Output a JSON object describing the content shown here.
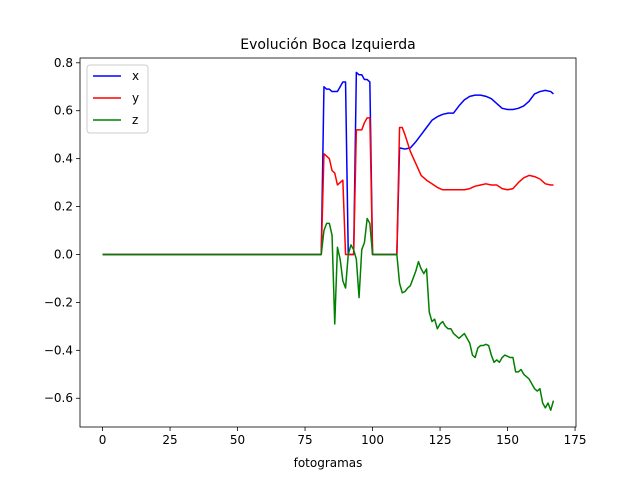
{
  "chart_data": {
    "type": "line",
    "title": "Evolución Boca Izquierda",
    "xlabel": "fotogramas",
    "ylabel": "",
    "xlim": [
      -8.35,
      175.35
    ],
    "ylim": [
      -0.72,
      0.82
    ],
    "xticks": [
      0,
      25,
      50,
      75,
      100,
      125,
      150,
      175
    ],
    "yticks": [
      -0.6,
      -0.4,
      -0.2,
      0.0,
      0.2,
      0.4,
      0.6,
      0.8
    ],
    "ytick_labels": [
      "−0.6",
      "−0.4",
      "−0.2",
      "0.0",
      "0.2",
      "0.4",
      "0.6",
      "0.8"
    ],
    "grid": false,
    "legend_position": "upper-left",
    "series": [
      {
        "name": "x",
        "color": "#0000ff",
        "points": [
          [
            0,
            0
          ],
          [
            81,
            0
          ],
          [
            82,
            0.7
          ],
          [
            83,
            0.69
          ],
          [
            84,
            0.69
          ],
          [
            85,
            0.68
          ],
          [
            86,
            0.68
          ],
          [
            87,
            0.68
          ],
          [
            88,
            0.7
          ],
          [
            89,
            0.72
          ],
          [
            90,
            0.72
          ],
          [
            91,
            0
          ],
          [
            92,
            0
          ],
          [
            93,
            0
          ],
          [
            94,
            0.76
          ],
          [
            95,
            0.75
          ],
          [
            96,
            0.75
          ],
          [
            97,
            0.73
          ],
          [
            98,
            0.73
          ],
          [
            99,
            0.72
          ],
          [
            100,
            0
          ],
          [
            101,
            0
          ],
          [
            102,
            0
          ],
          [
            103,
            0
          ],
          [
            104,
            0
          ],
          [
            105,
            0
          ],
          [
            106,
            0
          ],
          [
            107,
            0
          ],
          [
            108,
            0
          ],
          [
            109,
            0
          ],
          [
            110,
            0.445
          ],
          [
            112,
            0.44
          ],
          [
            114,
            0.445
          ],
          [
            116,
            0.47
          ],
          [
            118,
            0.5
          ],
          [
            120,
            0.53
          ],
          [
            122,
            0.56
          ],
          [
            124,
            0.575
          ],
          [
            126,
            0.585
          ],
          [
            128,
            0.59
          ],
          [
            130,
            0.59
          ],
          [
            132,
            0.62
          ],
          [
            134,
            0.645
          ],
          [
            136,
            0.66
          ],
          [
            138,
            0.665
          ],
          [
            140,
            0.665
          ],
          [
            142,
            0.66
          ],
          [
            144,
            0.65
          ],
          [
            146,
            0.63
          ],
          [
            148,
            0.61
          ],
          [
            150,
            0.605
          ],
          [
            152,
            0.605
          ],
          [
            154,
            0.61
          ],
          [
            156,
            0.62
          ],
          [
            158,
            0.64
          ],
          [
            160,
            0.67
          ],
          [
            162,
            0.68
          ],
          [
            164,
            0.685
          ],
          [
            166,
            0.68
          ],
          [
            167,
            0.67
          ]
        ]
      },
      {
        "name": "y",
        "color": "#ff0000",
        "points": [
          [
            0,
            0
          ],
          [
            81,
            0
          ],
          [
            82,
            0.42
          ],
          [
            83,
            0.41
          ],
          [
            84,
            0.4
          ],
          [
            85,
            0.35
          ],
          [
            86,
            0.34
          ],
          [
            87,
            0.29
          ],
          [
            88,
            0.3
          ],
          [
            89,
            0.31
          ],
          [
            90,
            0
          ],
          [
            91,
            0
          ],
          [
            92,
            0
          ],
          [
            93,
            0
          ],
          [
            94,
            0.52
          ],
          [
            95,
            0.52
          ],
          [
            96,
            0.52
          ],
          [
            97,
            0.55
          ],
          [
            98,
            0.57
          ],
          [
            99,
            0.57
          ],
          [
            100,
            0
          ],
          [
            101,
            0
          ],
          [
            102,
            0
          ],
          [
            103,
            0
          ],
          [
            104,
            0
          ],
          [
            105,
            0
          ],
          [
            106,
            0
          ],
          [
            107,
            0
          ],
          [
            108,
            0
          ],
          [
            109,
            0
          ],
          [
            110,
            0.53
          ],
          [
            111,
            0.53
          ],
          [
            112,
            0.5
          ],
          [
            114,
            0.43
          ],
          [
            116,
            0.38
          ],
          [
            118,
            0.33
          ],
          [
            120,
            0.31
          ],
          [
            122,
            0.295
          ],
          [
            124,
            0.28
          ],
          [
            126,
            0.27
          ],
          [
            128,
            0.27
          ],
          [
            130,
            0.27
          ],
          [
            132,
            0.27
          ],
          [
            134,
            0.27
          ],
          [
            136,
            0.275
          ],
          [
            138,
            0.285
          ],
          [
            140,
            0.29
          ],
          [
            142,
            0.295
          ],
          [
            144,
            0.29
          ],
          [
            146,
            0.29
          ],
          [
            148,
            0.275
          ],
          [
            150,
            0.27
          ],
          [
            152,
            0.275
          ],
          [
            154,
            0.3
          ],
          [
            156,
            0.32
          ],
          [
            158,
            0.33
          ],
          [
            160,
            0.325
          ],
          [
            162,
            0.315
          ],
          [
            164,
            0.295
          ],
          [
            166,
            0.29
          ],
          [
            167,
            0.29
          ]
        ]
      },
      {
        "name": "z",
        "color": "#008000",
        "points": [
          [
            0,
            0
          ],
          [
            81,
            0
          ],
          [
            82,
            0.1
          ],
          [
            83,
            0.13
          ],
          [
            84,
            0.13
          ],
          [
            85,
            0.08
          ],
          [
            86,
            -0.29
          ],
          [
            87,
            0.03
          ],
          [
            88,
            -0.02
          ],
          [
            89,
            -0.11
          ],
          [
            90,
            -0.14
          ],
          [
            91,
            0
          ],
          [
            92,
            0.04
          ],
          [
            93,
            0.02
          ],
          [
            94,
            -0.02
          ],
          [
            95,
            -0.18
          ],
          [
            96,
            0.02
          ],
          [
            97,
            0.05
          ],
          [
            98,
            0.15
          ],
          [
            99,
            0.13
          ],
          [
            100,
            0
          ],
          [
            101,
            0
          ],
          [
            102,
            0
          ],
          [
            103,
            0
          ],
          [
            104,
            0
          ],
          [
            105,
            0
          ],
          [
            106,
            0
          ],
          [
            107,
            0
          ],
          [
            108,
            0
          ],
          [
            109,
            0
          ],
          [
            110,
            -0.12
          ],
          [
            111,
            -0.16
          ],
          [
            112,
            -0.155
          ],
          [
            113,
            -0.14
          ],
          [
            114,
            -0.13
          ],
          [
            115,
            -0.1
          ],
          [
            116,
            -0.07
          ],
          [
            117,
            -0.03
          ],
          [
            118,
            -0.06
          ],
          [
            119,
            -0.08
          ],
          [
            120,
            -0.06
          ],
          [
            121,
            -0.24
          ],
          [
            122,
            -0.28
          ],
          [
            123,
            -0.27
          ],
          [
            124,
            -0.31
          ],
          [
            125,
            -0.29
          ],
          [
            126,
            -0.28
          ],
          [
            127,
            -0.3
          ],
          [
            128,
            -0.31
          ],
          [
            129,
            -0.31
          ],
          [
            130,
            -0.33
          ],
          [
            131,
            -0.34
          ],
          [
            132,
            -0.35
          ],
          [
            133,
            -0.34
          ],
          [
            134,
            -0.33
          ],
          [
            135,
            -0.35
          ],
          [
            136,
            -0.37
          ],
          [
            137,
            -0.42
          ],
          [
            138,
            -0.43
          ],
          [
            139,
            -0.39
          ],
          [
            140,
            -0.38
          ],
          [
            141,
            -0.38
          ],
          [
            142,
            -0.375
          ],
          [
            143,
            -0.38
          ],
          [
            144,
            -0.42
          ],
          [
            145,
            -0.45
          ],
          [
            146,
            -0.44
          ],
          [
            147,
            -0.45
          ],
          [
            148,
            -0.43
          ],
          [
            149,
            -0.42
          ],
          [
            150,
            -0.425
          ],
          [
            151,
            -0.43
          ],
          [
            152,
            -0.43
          ],
          [
            153,
            -0.49
          ],
          [
            154,
            -0.49
          ],
          [
            155,
            -0.48
          ],
          [
            156,
            -0.5
          ],
          [
            157,
            -0.51
          ],
          [
            158,
            -0.52
          ],
          [
            159,
            -0.54
          ],
          [
            160,
            -0.56
          ],
          [
            161,
            -0.57
          ],
          [
            162,
            -0.56
          ],
          [
            163,
            -0.62
          ],
          [
            164,
            -0.64
          ],
          [
            165,
            -0.62
          ],
          [
            166,
            -0.65
          ],
          [
            167,
            -0.61
          ]
        ]
      }
    ]
  }
}
